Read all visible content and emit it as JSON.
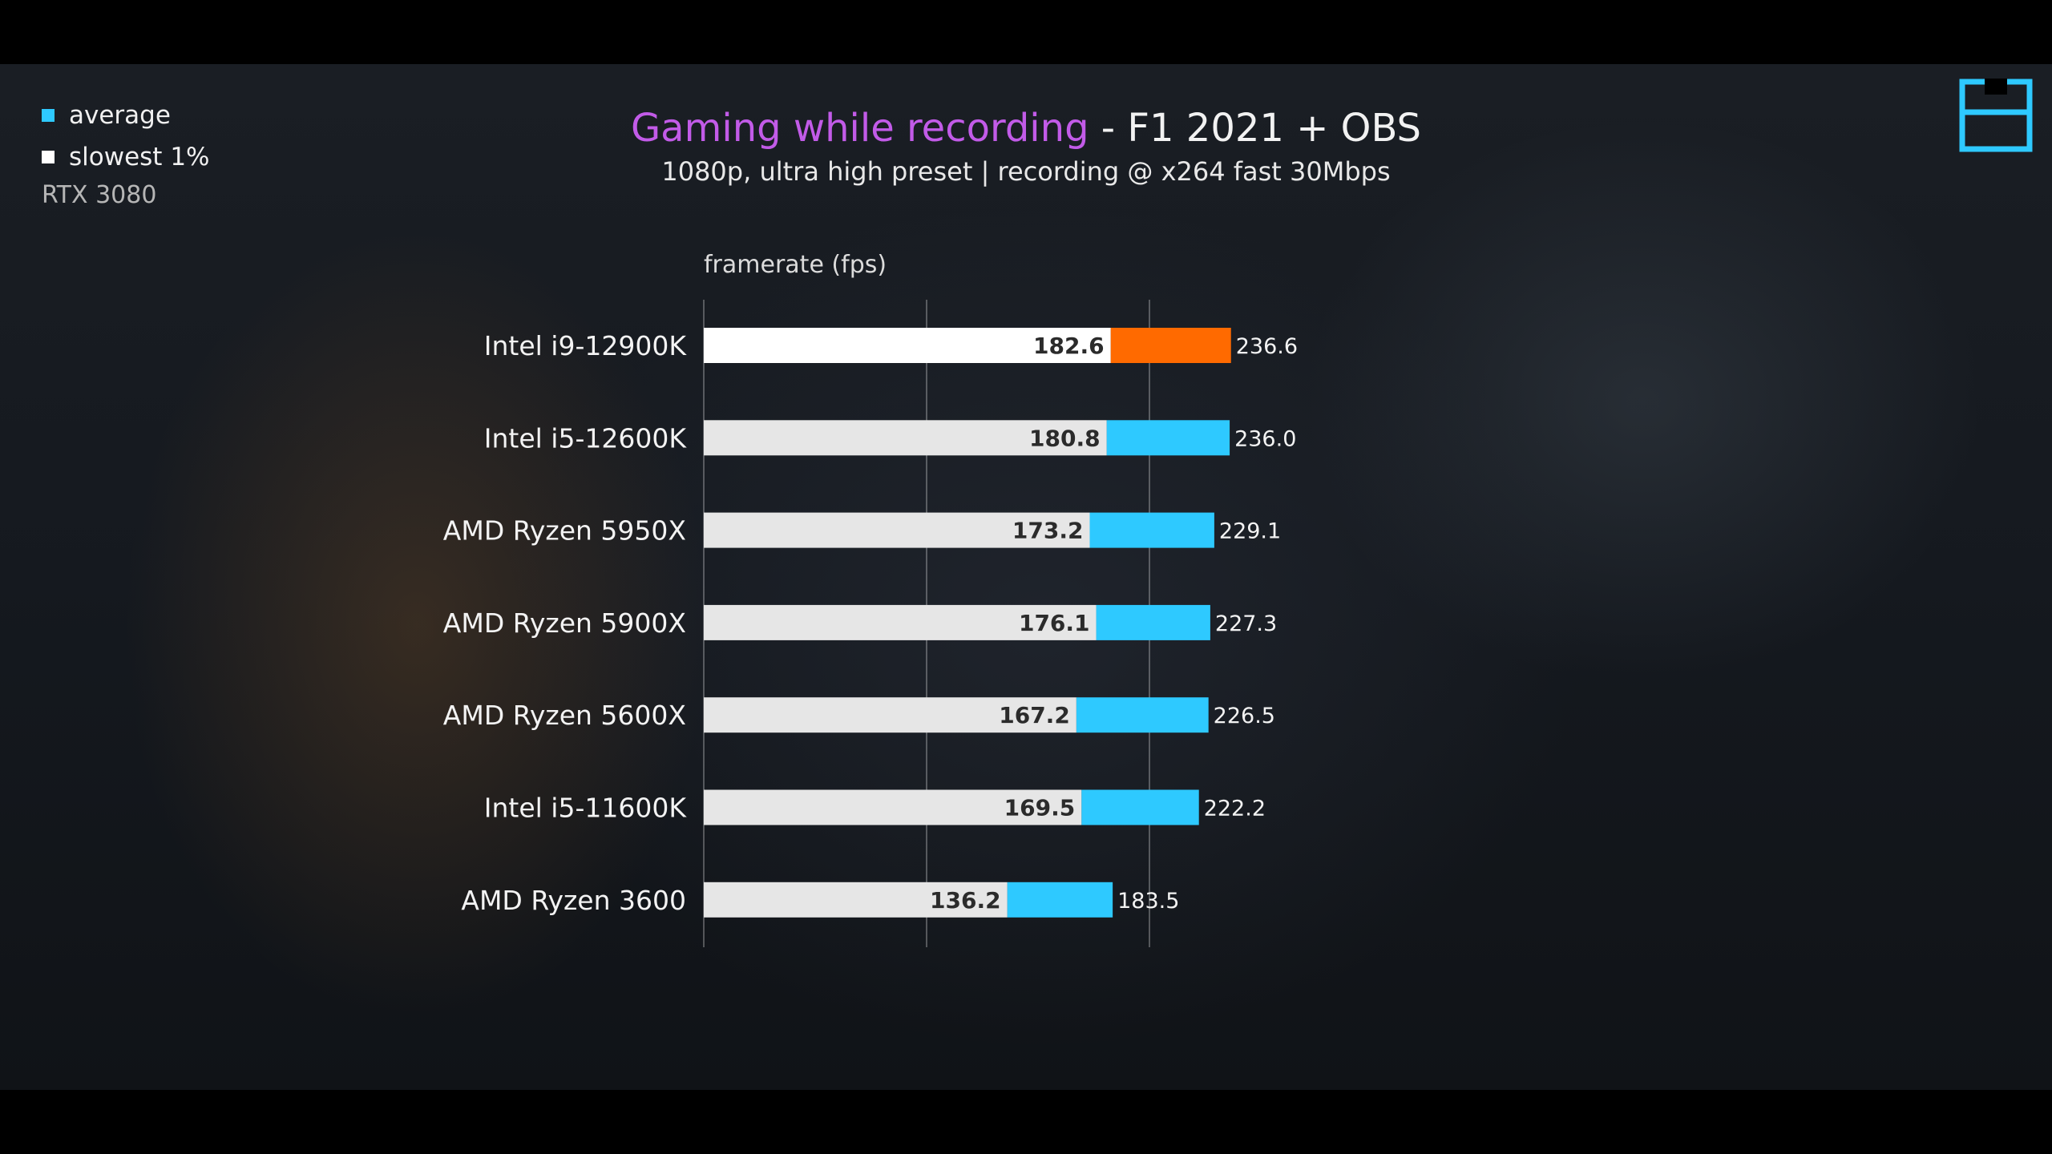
{
  "title_accent": "Gaming while recording",
  "title_rest": " - F1 2021 + OBS",
  "subtitle": "1080p, ultra high preset | recording @ x264 fast 30Mbps",
  "legend": {
    "items": [
      {
        "label": "average",
        "color": "#2ec9ff"
      },
      {
        "label": "slowest 1%",
        "color": "#ffffff"
      }
    ],
    "gpu": "RTX 3080"
  },
  "colors": {
    "average": "#2ec9ff",
    "average_highlight": "#ff6a00",
    "slowest": "#e6e6e6",
    "slowest_highlight": "#ffffff",
    "title_accent": "#c25be8",
    "logo": "#2ec9ff"
  },
  "logo_icon": "channel-logo-icon",
  "chart_data": {
    "type": "bar",
    "orientation": "horizontal",
    "xlabel": "framerate  (fps)",
    "xlim": [
      0,
      250
    ],
    "grid": true,
    "categories": [
      "Intel i9-12900K",
      "Intel i5-12600K",
      "AMD Ryzen 5950X",
      "AMD Ryzen 5900X",
      "AMD Ryzen 5600X",
      "Intel i5-11600K",
      "AMD Ryzen 3600"
    ],
    "series": [
      {
        "name": "slowest 1%",
        "values": [
          182.6,
          180.8,
          173.2,
          176.1,
          167.2,
          169.5,
          136.2
        ]
      },
      {
        "name": "average",
        "values": [
          236.6,
          236.0,
          229.1,
          227.3,
          226.5,
          222.2,
          183.5
        ]
      }
    ],
    "value_labels": {
      "slowest": [
        "182.6",
        "180.8",
        "173.2",
        "176.1",
        "167.2",
        "169.5",
        "136.2"
      ],
      "average": [
        "236.6",
        "236.0",
        "229.1",
        "227.3",
        "226.5",
        "222.2",
        "183.5"
      ]
    },
    "highlight_index": 0
  }
}
